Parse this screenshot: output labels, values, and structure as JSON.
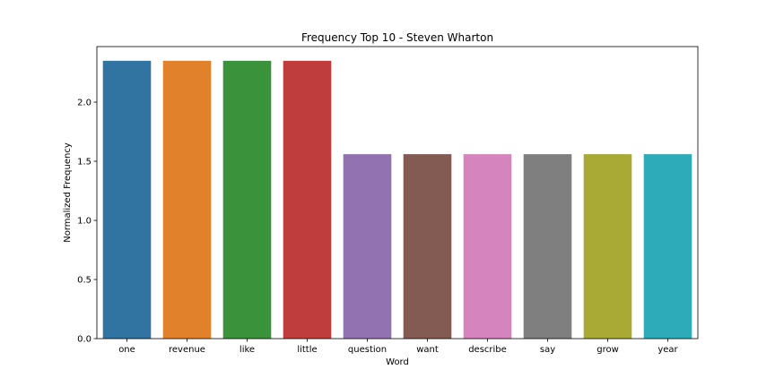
{
  "chart_data": {
    "type": "bar",
    "title": "Frequency Top 10 - Steven Wharton",
    "xlabel": "Word",
    "ylabel": "Normalized Frequency",
    "categories": [
      "one",
      "revenue",
      "like",
      "little",
      "question",
      "want",
      "describe",
      "say",
      "grow",
      "year"
    ],
    "values": [
      2.35,
      2.35,
      2.35,
      2.35,
      1.56,
      1.56,
      1.56,
      1.56,
      1.56,
      1.56
    ],
    "colors": [
      "#3274a1",
      "#e1812c",
      "#3a923a",
      "#c03d3e",
      "#9372b2",
      "#845b53",
      "#d684bd",
      "#7f7f7f",
      "#a9aa35",
      "#2eabb8"
    ],
    "ylim": [
      0,
      2.47
    ],
    "yticks": [
      "0.0",
      "0.5",
      "1.0",
      "1.5",
      "2.0"
    ],
    "ytick_values": [
      0,
      0.5,
      1.0,
      1.5,
      2.0
    ],
    "grid": false,
    "legend": "none"
  }
}
